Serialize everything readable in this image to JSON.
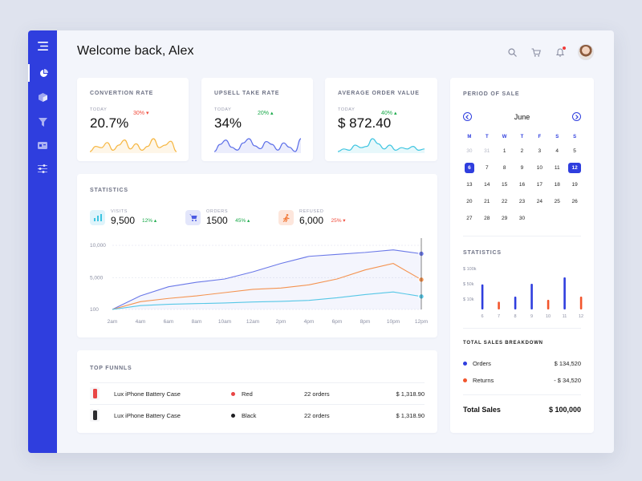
{
  "header": {
    "title": "Welcome back, Alex"
  },
  "sidebar": {
    "items": [
      "menu-icon",
      "pie-chart-icon",
      "cube-icon",
      "filter-icon",
      "card-icon",
      "sliders-icon"
    ]
  },
  "kpis": [
    {
      "title": "CONVERTION RATE",
      "today": "TODAY",
      "change": "30%",
      "direction": "down",
      "value": "20.7%",
      "color": "#f6b640",
      "spark": [
        5,
        9,
        8,
        12,
        6,
        10,
        14,
        7,
        11,
        6,
        9,
        15,
        8,
        10,
        13,
        5
      ]
    },
    {
      "title": "UPSELL TAKE RATE",
      "today": "TODAY",
      "change": "20%",
      "direction": "up",
      "value": "34%",
      "color": "#5b6ee8",
      "spark": [
        6,
        11,
        14,
        9,
        7,
        12,
        15,
        10,
        8,
        13,
        11,
        7,
        12,
        9,
        6,
        15
      ]
    },
    {
      "title": "AVERAGE ORDER VALUE",
      "today": "TODAY",
      "change": "40%",
      "direction": "up",
      "value": "$ 872.40",
      "color": "#3cc4e0",
      "spark": [
        4,
        6,
        5,
        9,
        7,
        8,
        14,
        10,
        6,
        9,
        5,
        7,
        6,
        8,
        5,
        6
      ]
    }
  ],
  "statistics": {
    "title": "STATISTICS",
    "items": [
      {
        "label": "VISITS",
        "value": "9,500",
        "change": "12%",
        "direction": "up",
        "icon": "bar-chart-icon",
        "bg": "#dff4fb",
        "fg": "#3cc4e0"
      },
      {
        "label": "ORDERS",
        "value": "1500",
        "change": "45%",
        "direction": "up",
        "icon": "cart-icon",
        "bg": "#e3e6fb",
        "fg": "#4b5ae2"
      },
      {
        "label": "REFUSED",
        "value": "6,000",
        "change": "25%",
        "direction": "down",
        "icon": "runner-icon",
        "bg": "#fde6dc",
        "fg": "#f27a3a"
      }
    ],
    "chart_data": {
      "type": "line",
      "x": [
        "2am",
        "4am",
        "6am",
        "8am",
        "10am",
        "12am",
        "2pm",
        "4pm",
        "6pm",
        "8pm",
        "10pm",
        "12pm"
      ],
      "y_ticks": [
        "10,000",
        "5,000",
        "100"
      ],
      "ylim": [
        100,
        10000
      ],
      "series": [
        {
          "color": "#6a78e8",
          "values": [
            100,
            2200,
            3600,
            4300,
            4800,
            5900,
            7200,
            8300,
            8600,
            8900,
            9300,
            8700
          ]
        },
        {
          "color": "#f49350",
          "values": [
            100,
            1300,
            1800,
            2200,
            2700,
            3200,
            3400,
            3900,
            4800,
            6200,
            7200,
            4700
          ]
        },
        {
          "color": "#56c7e6",
          "values": [
            100,
            700,
            900,
            1000,
            1100,
            1250,
            1350,
            1500,
            1900,
            2400,
            2800,
            2100
          ]
        }
      ]
    }
  },
  "funnels": {
    "title": "TOP FUNNLS",
    "rows": [
      {
        "product": "Lux iPhone Battery Case",
        "thumb_color": "#e84545",
        "color_name": "Red",
        "dot": "#e84545",
        "orders": "22 orders",
        "amount": "$ 1,318.90"
      },
      {
        "product": "Lux iPhone Battery Case",
        "thumb_color": "#2a2a2e",
        "color_name": "Black",
        "dot": "#1e1e22",
        "orders": "22 orders",
        "amount": "$ 1,318.90"
      }
    ]
  },
  "period": {
    "title": "PERIOD OF SALE",
    "month": "June",
    "weekdays": [
      "M",
      "T",
      "W",
      "T",
      "F",
      "S",
      "S"
    ],
    "days": [
      {
        "d": "30",
        "m": true
      },
      {
        "d": "31",
        "m": true
      },
      {
        "d": "1"
      },
      {
        "d": "2"
      },
      {
        "d": "3"
      },
      {
        "d": "4"
      },
      {
        "d": "5"
      },
      {
        "d": "6",
        "s": true
      },
      {
        "d": "7"
      },
      {
        "d": "8"
      },
      {
        "d": "9"
      },
      {
        "d": "10"
      },
      {
        "d": "11"
      },
      {
        "d": "12",
        "s": true
      },
      {
        "d": "13"
      },
      {
        "d": "14"
      },
      {
        "d": "15"
      },
      {
        "d": "16"
      },
      {
        "d": "17"
      },
      {
        "d": "18"
      },
      {
        "d": "19"
      },
      {
        "d": "20"
      },
      {
        "d": "21"
      },
      {
        "d": "22"
      },
      {
        "d": "23"
      },
      {
        "d": "24"
      },
      {
        "d": "25"
      },
      {
        "d": "26"
      },
      {
        "d": "27"
      },
      {
        "d": "28"
      },
      {
        "d": "29"
      },
      {
        "d": "30"
      }
    ]
  },
  "side_stats": {
    "title": "STATISTICS",
    "chart_data": {
      "type": "bar",
      "categories": [
        "6",
        "7",
        "8",
        "9",
        "10",
        "11",
        "12"
      ],
      "y_ticks": [
        "$ 100k",
        "$ 50k",
        "$ 10k"
      ],
      "values": [
        78,
        24,
        40,
        80,
        30,
        100,
        40
      ],
      "colors": [
        "#2f3ede",
        "#f2552c",
        "#2f3ede",
        "#2f3ede",
        "#f2552c",
        "#2f3ede",
        "#f2552c"
      ]
    }
  },
  "breakdown": {
    "title": "TOTAL SALES BREAKDOWN",
    "orders_label": "Orders",
    "orders_value": "$ 134,520",
    "orders_color": "#2f3ede",
    "returns_label": "Returns",
    "returns_value": "- $ 34,520",
    "returns_color": "#f2552c",
    "total_label": "Total Sales",
    "total_value": "$ 100,000"
  }
}
